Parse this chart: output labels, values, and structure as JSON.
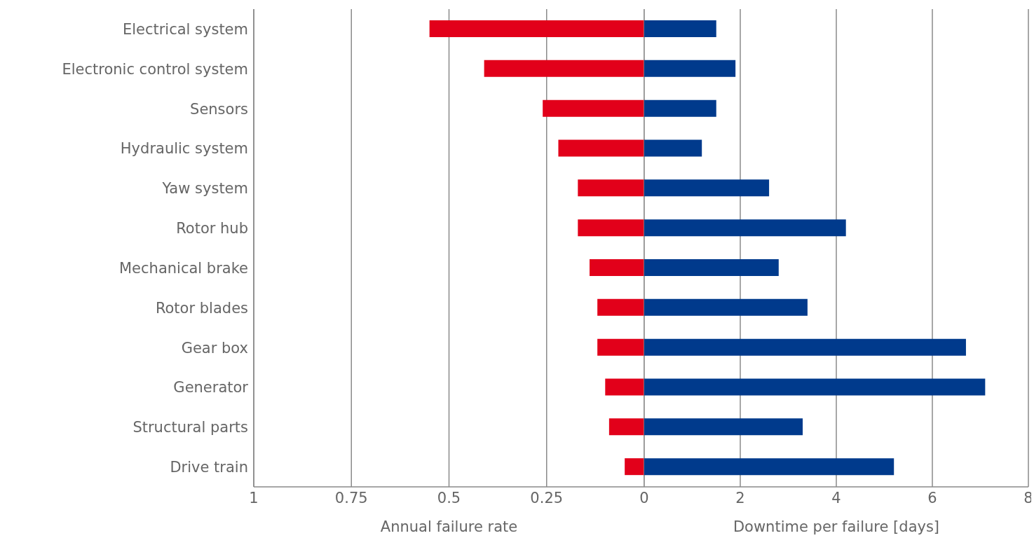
{
  "chart_data": [
    {
      "type": "bar",
      "orientation": "horizontal",
      "categories": [
        "Electrical system",
        "Electronic control system",
        "Sensors",
        "Hydraulic system",
        "Yaw system",
        "Rotor hub",
        "Mechanical brake",
        "Rotor blades",
        "Gear box",
        "Generator",
        "Structural parts",
        "Drive train"
      ],
      "values": [
        0.55,
        0.41,
        0.26,
        0.22,
        0.17,
        0.17,
        0.14,
        0.12,
        0.12,
        0.1,
        0.09,
        0.05
      ],
      "color": "#e2001a",
      "xlim": [
        1,
        0
      ],
      "xticks": [
        1,
        0.75,
        0.5,
        0.25
      ],
      "xlabel": "Annual failure rate",
      "grid": "x"
    },
    {
      "type": "bar",
      "orientation": "horizontal",
      "categories": [
        null,
        null,
        null,
        null,
        null,
        null,
        null,
        null,
        null,
        null,
        null,
        null
      ],
      "values": [
        1.5,
        1.9,
        1.5,
        1.2,
        2.6,
        4.2,
        2.8,
        3.4,
        6.7,
        7.1,
        3.3,
        5.2
      ],
      "color": "#003a8c",
      "xlim": [
        0,
        8
      ],
      "xticks": [
        0,
        2,
        4,
        6,
        8
      ],
      "xlabel": "Downtime per failure [days]",
      "grid": "x",
      "tick_labels": "x"
    }
  ]
}
